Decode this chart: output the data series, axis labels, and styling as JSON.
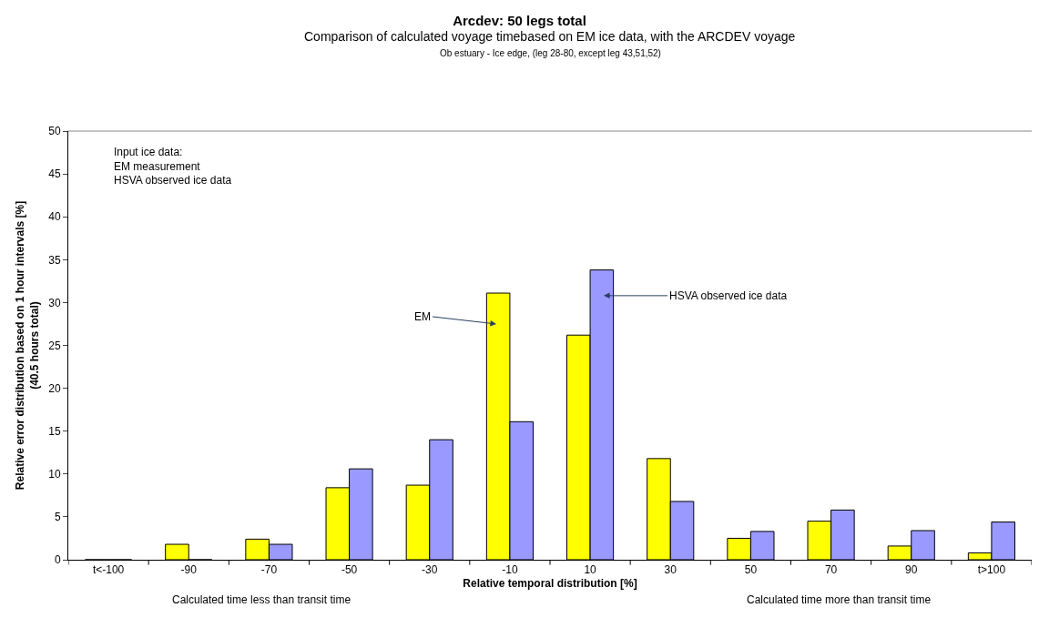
{
  "chart_data": {
    "type": "bar",
    "title": "Arcdev: 50 legs total",
    "subtitle": "Comparison of calculated voyage timebased on EM ice data, with the ARCDEV voyage",
    "xlabel": "Relative temporal distribution [%]",
    "ylabel": "Relative error distribution based on 1 hour intervals [%]\n(40.5 hours total)",
    "categories": [
      "t<-100",
      "-90",
      "-70",
      "-50",
      "-30",
      "-10",
      "10",
      "30",
      "50",
      "70",
      "90",
      "t>100"
    ],
    "series": [
      {
        "color": "#ffff00",
        "values": [
          0,
          1.8,
          2.4,
          8.4,
          8.7,
          31.1,
          26.2,
          11.8,
          2.5,
          4.5,
          1.6,
          0.8
        ]
      },
      {
        "color": "#9999ff",
        "values": [
          0,
          0,
          1.8,
          10.6,
          14.0,
          16.1,
          33.8,
          6.8,
          3.3,
          5.8,
          3.4,
          4.4
        ]
      }
    ],
    "ylim": [
      0,
      50
    ],
    "yticks": [
      0,
      5,
      10,
      15,
      20,
      25,
      30,
      35,
      40,
      45,
      50
    ],
    "legend": false,
    "annotations": [
      "Ob estuary - Ice edge, (leg 28-80, except leg 43,51,52)",
      "Input ice data:\nEM measurement\nHSVA observed ice data",
      "Calculated time less than transit time",
      "Calculated time more than transit time",
      "EM",
      "HSVA observed ice data"
    ]
  }
}
